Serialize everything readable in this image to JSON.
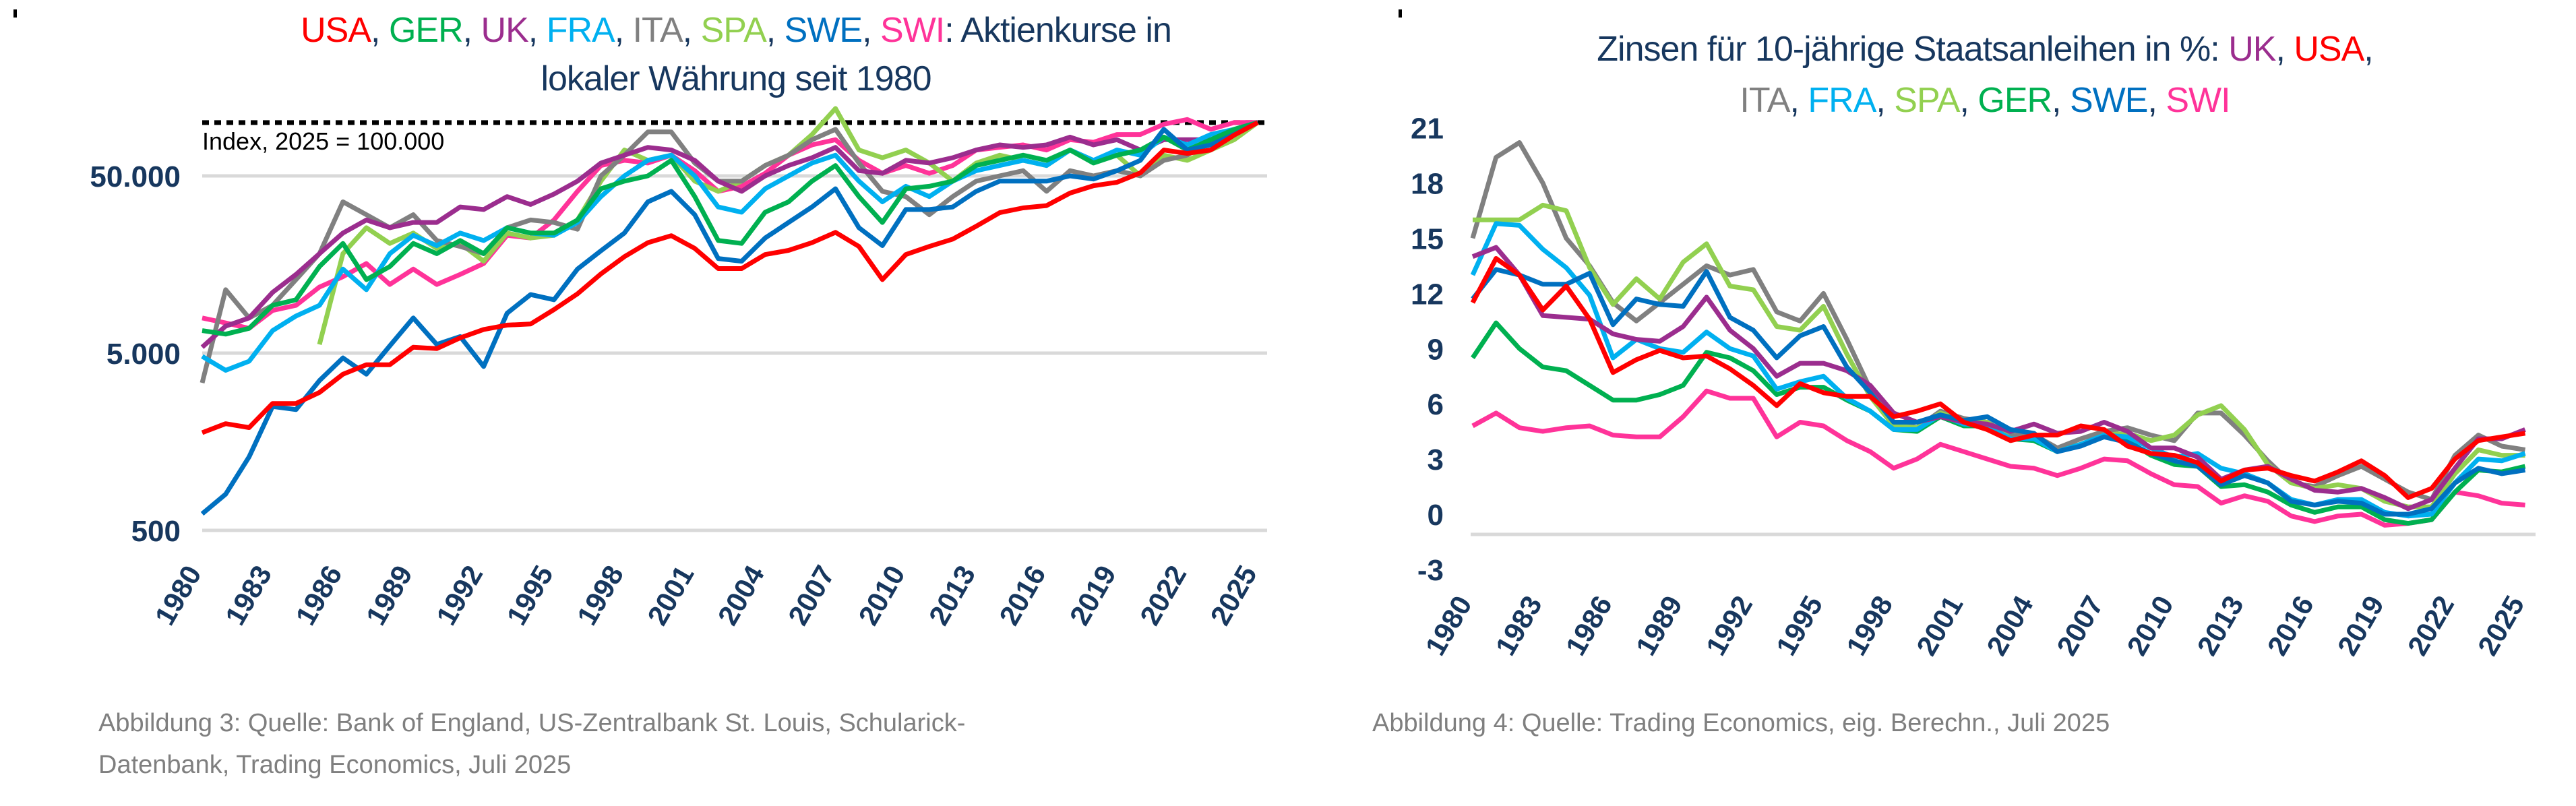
{
  "colors": {
    "USA": "#FF0000",
    "GER": "#00B050",
    "UK": "#9B2D8E",
    "FRA": "#00B0F0",
    "ITA": "#808080",
    "SPA": "#92D050",
    "SWE": "#0070C0",
    "SWI": "#FF3399",
    "title": "#17375E",
    "grid": "#D9D9D9"
  },
  "chart_data": [
    {
      "type": "line",
      "title_parts": [
        "USA",
        ", ",
        "GER",
        ", ",
        "UK",
        ", ",
        "FRA",
        ", ",
        "ITA",
        ", ",
        "SPA",
        ", ",
        "SWE",
        ", ",
        "SWI",
        ": Aktienkurse in"
      ],
      "title_line2": "lokaler Währung seit 1980",
      "annotation": "Index, 2025 = 100.000",
      "reference_line": 100000,
      "yscale": "log",
      "ylim": [
        500,
        100000
      ],
      "yticks": [
        50000,
        5000,
        500
      ],
      "ytick_labels": [
        "50.000",
        "5.000",
        "500"
      ],
      "xtick_labels": [
        "1980",
        "1983",
        "1986",
        "1989",
        "1992",
        "1995",
        "1998",
        "2001",
        "2004",
        "2007",
        "2010",
        "2013",
        "2016",
        "2019",
        "2022",
        "2025"
      ],
      "x_start": 1980,
      "series": [
        {
          "name": "SWI",
          "values": [
            7900,
            7400,
            6900,
            8700,
            9300,
            11800,
            13500,
            16000,
            12200,
            14900,
            12200,
            13900,
            16000,
            23100,
            22300,
            28200,
            40900,
            57200,
            61200,
            59100,
            65400,
            53500,
            40900,
            43700,
            51700,
            65400,
            74800,
            80000,
            61200,
            51700,
            57200,
            51700,
            57200,
            70000,
            72400,
            74800,
            70000,
            80000,
            77400,
            85600,
            85600,
            97900,
            104000,
            91600,
            100000,
            100000
          ]
        },
        {
          "name": "SPA",
          "values": [
            null,
            null,
            null,
            null,
            null,
            5600,
            18200,
            25500,
            20800,
            23800,
            19500,
            20800,
            16500,
            23800,
            22300,
            23100,
            28200,
            46700,
            70000,
            61200,
            65400,
            46700,
            40900,
            46700,
            57200,
            65400,
            85600,
            120000,
            70000,
            63300,
            70000,
            59100,
            46700,
            59100,
            65400,
            61200,
            57200,
            70000,
            61200,
            65400,
            50000,
            65400,
            61200,
            70000,
            80000,
            100000
          ]
        },
        {
          "name": "ITA",
          "values": [
            3400,
            11400,
            7900,
            9300,
            13000,
            18200,
            35700,
            30200,
            25500,
            30200,
            21600,
            20000,
            18200,
            25500,
            28200,
            27300,
            25000,
            50000,
            65400,
            88500,
            88500,
            59100,
            46700,
            46700,
            57200,
            65400,
            80000,
            91600,
            59100,
            40900,
            38200,
            30200,
            38200,
            46700,
            50000,
            53500,
            40900,
            53500,
            50000,
            53500,
            50000,
            61200,
            65400,
            80000,
            85600,
            100000
          ]
        },
        {
          "name": "UK",
          "values": [
            5400,
            7100,
            7900,
            11000,
            13900,
            18200,
            23800,
            28200,
            25500,
            27300,
            27300,
            33400,
            32300,
            38200,
            34500,
            39500,
            46700,
            59100,
            65400,
            72400,
            70000,
            61200,
            46700,
            40900,
            50000,
            57200,
            63300,
            72400,
            53500,
            51700,
            61200,
            59100,
            63300,
            70000,
            74800,
            72400,
            74800,
            82800,
            74800,
            80000,
            70000,
            80000,
            80000,
            80000,
            88500,
            100000
          ]
        },
        {
          "name": "FRA",
          "values": [
            4800,
            4000,
            4500,
            6700,
            8100,
            9300,
            14900,
            11400,
            18200,
            23100,
            20200,
            23800,
            21600,
            25500,
            23800,
            23100,
            27300,
            38200,
            50000,
            61200,
            65400,
            50000,
            33400,
            31200,
            42300,
            50000,
            59100,
            65400,
            46700,
            35700,
            43700,
            38200,
            46700,
            53500,
            57200,
            61200,
            57200,
            70000,
            61200,
            70000,
            65400,
            82800,
            74800,
            85600,
            91600,
            100000
          ]
        },
        {
          "name": "GER",
          "values": [
            6700,
            6400,
            6900,
            9300,
            10000,
            15400,
            20800,
            13000,
            15400,
            20800,
            18200,
            21600,
            18200,
            25500,
            23800,
            23800,
            28200,
            42300,
            46700,
            50000,
            61200,
            38200,
            21600,
            20800,
            31200,
            35700,
            46700,
            57200,
            38200,
            27300,
            42300,
            43700,
            46700,
            57200,
            61200,
            65400,
            61200,
            70000,
            59100,
            65400,
            70000,
            82800,
            70000,
            80000,
            91600,
            100000
          ]
        },
        {
          "name": "SWE",
          "values": [
            620,
            800,
            1300,
            2500,
            2400,
            3500,
            4700,
            3800,
            5500,
            7900,
            5600,
            6200,
            4200,
            8400,
            10700,
            10000,
            14900,
            18900,
            23800,
            35700,
            40900,
            30200,
            17100,
            16500,
            22300,
            27300,
            33400,
            42300,
            25500,
            20200,
            32300,
            32300,
            33400,
            40900,
            46700,
            46700,
            46700,
            50000,
            48000,
            53500,
            61200,
            91600,
            70000,
            74800,
            85600,
            100000
          ]
        },
        {
          "name": "USA",
          "values": [
            1780,
            2000,
            1900,
            2600,
            2600,
            3000,
            3800,
            4300,
            4300,
            5400,
            5300,
            6100,
            6800,
            7200,
            7300,
            8800,
            10800,
            14000,
            17500,
            21000,
            23000,
            19500,
            15000,
            15000,
            18000,
            19000,
            21000,
            24000,
            20000,
            13000,
            18000,
            20000,
            22000,
            26000,
            31000,
            33000,
            34000,
            40000,
            44000,
            46000,
            52000,
            70000,
            67000,
            70000,
            85000,
            100000
          ]
        }
      ]
    },
    {
      "type": "line",
      "title_parts": [
        "Zinsen für 10-jährige Staatsanleihen in %: ",
        "UK",
        ", ",
        "USA",
        ","
      ],
      "title_line2_parts": [
        "ITA",
        ", ",
        "FRA",
        ", ",
        "SPA",
        ", ",
        "GER",
        ", ",
        "SWE",
        ", ",
        "SWI"
      ],
      "ylim": [
        -3,
        21
      ],
      "yticks": [
        21,
        18,
        15,
        12,
        9,
        6,
        3,
        0,
        -3
      ],
      "ytick_labels": [
        "21",
        "18",
        "15",
        "12",
        "9",
        "6",
        "3",
        "0",
        "-3"
      ],
      "xtick_labels": [
        "1980",
        "1983",
        "1986",
        "1989",
        "1992",
        "1995",
        "1998",
        "2001",
        "2004",
        "2007",
        "2010",
        "2013",
        "2016",
        "2019",
        "2022",
        "2025"
      ],
      "x_start": 1980,
      "series": [
        {
          "name": "SWI",
          "values": [
            4.8,
            5.5,
            4.7,
            4.5,
            4.7,
            4.8,
            4.3,
            4.2,
            4.2,
            5.3,
            6.7,
            6.3,
            6.3,
            4.2,
            5.0,
            4.8,
            4.0,
            3.4,
            2.5,
            3.0,
            3.8,
            3.4,
            3.0,
            2.6,
            2.5,
            2.1,
            2.5,
            3.0,
            2.9,
            2.2,
            1.6,
            1.5,
            0.6,
            1.0,
            0.7,
            -0.1,
            -0.4,
            -0.1,
            0.0,
            -0.6,
            -0.5,
            -0.3,
            1.2,
            1.0,
            0.6,
            0.5
          ]
        },
        {
          "name": "ITA",
          "values": [
            15,
            19.4,
            20.2,
            18,
            15,
            13.5,
            11.5,
            10.5,
            11.5,
            12.5,
            13.5,
            13,
            13.3,
            11,
            10.5,
            12,
            9.5,
            6.8,
            5,
            4.7,
            5.6,
            5.2,
            5.0,
            4.3,
            4.3,
            3.6,
            4.1,
            4.5,
            4.7,
            4.3,
            4.0,
            5.5,
            5.5,
            4.3,
            2.9,
            1.7,
            1.5,
            2.1,
            2.6,
            1.9,
            1.2,
            0.8,
            3.2,
            4.3,
            3.7,
            3.5
          ]
        },
        {
          "name": "SPA",
          "values": [
            16,
            16,
            16,
            16.8,
            16.5,
            13.4,
            11.4,
            12.8,
            11.7,
            13.7,
            14.7,
            12.4,
            12.2,
            10.2,
            10.0,
            11.3,
            8.7,
            6.4,
            4.8,
            4.7,
            5.5,
            5.1,
            5.0,
            4.1,
            4.1,
            3.4,
            3.8,
            4.3,
            4.4,
            4.0,
            4.3,
            5.4,
            5.9,
            4.6,
            2.7,
            1.7,
            1.4,
            1.6,
            1.4,
            0.7,
            0.4,
            0.4,
            2.2,
            3.5,
            3.2,
            3.2
          ]
        },
        {
          "name": "GER",
          "values": [
            8.5,
            10.4,
            9.0,
            8.0,
            7.8,
            7.0,
            6.2,
            6.2,
            6.5,
            7.0,
            8.8,
            8.5,
            7.8,
            6.5,
            6.9,
            6.9,
            6.2,
            5.6,
            4.6,
            4.5,
            5.3,
            4.8,
            4.8,
            4.1,
            4.0,
            3.4,
            3.8,
            4.2,
            4.0,
            3.2,
            2.7,
            2.6,
            1.5,
            1.6,
            1.2,
            0.5,
            0.1,
            0.4,
            0.4,
            -0.3,
            -0.5,
            -0.3,
            1.2,
            2.4,
            2.3,
            2.6
          ]
        },
        {
          "name": "FRA",
          "values": [
            13,
            15.8,
            15.7,
            14.4,
            13.4,
            11.9,
            8.5,
            9.5,
            9.0,
            8.8,
            9.9,
            9.0,
            8.6,
            6.8,
            7.2,
            7.5,
            6.3,
            5.6,
            4.6,
            4.6,
            5.4,
            4.9,
            4.8,
            4.1,
            4.1,
            3.4,
            3.8,
            4.3,
            4.2,
            3.6,
            3.1,
            3.3,
            2.5,
            2.2,
            1.7,
            0.8,
            0.5,
            0.8,
            0.8,
            0.1,
            -0.1,
            0.0,
            1.7,
            3.0,
            2.9,
            3.3
          ]
        },
        {
          "name": "UK",
          "values": [
            14,
            14.5,
            13,
            10.8,
            10.7,
            10.6,
            9.8,
            9.5,
            9.4,
            10.2,
            11.8,
            10.0,
            9.0,
            7.5,
            8.2,
            8.2,
            7.8,
            7.0,
            5.5,
            5.0,
            5.3,
            5.0,
            4.9,
            4.5,
            4.9,
            4.4,
            4.5,
            5.0,
            4.5,
            3.6,
            3.6,
            3.1,
            1.9,
            2.4,
            2.6,
            1.9,
            1.3,
            1.2,
            1.4,
            0.9,
            0.3,
            0.8,
            2.5,
            4.1,
            4.1,
            4.6
          ]
        },
        {
          "name": "SWE",
          "values": [
            11.7,
            13.3,
            13.0,
            12.5,
            12.5,
            13.1,
            10.3,
            11.7,
            11.4,
            11.3,
            13.2,
            10.7,
            10.0,
            8.5,
            9.7,
            10.2,
            8.0,
            6.6,
            5.0,
            5.0,
            5.4,
            5.1,
            5.3,
            4.6,
            4.4,
            3.4,
            3.7,
            4.2,
            3.9,
            3.3,
            2.9,
            2.6,
            1.6,
            2.1,
            1.7,
            0.7,
            0.5,
            0.7,
            0.6,
            0.0,
            0.0,
            0.3,
            1.7,
            2.5,
            2.2,
            2.4
          ]
        },
        {
          "name": "USA",
          "values": [
            11.5,
            13.9,
            13.0,
            11.1,
            12.4,
            10.6,
            7.7,
            8.4,
            8.9,
            8.5,
            8.6,
            7.9,
            7.0,
            5.9,
            7.1,
            6.6,
            6.4,
            6.4,
            5.3,
            5.6,
            6.0,
            5.0,
            4.6,
            4.0,
            4.3,
            4.3,
            4.8,
            4.6,
            3.7,
            3.3,
            3.2,
            2.8,
            1.8,
            2.4,
            2.5,
            2.1,
            1.8,
            2.3,
            2.9,
            2.1,
            0.9,
            1.4,
            3.0,
            4.0,
            4.2,
            4.4
          ]
        }
      ]
    }
  ],
  "captions": {
    "left_line1": "Abbildung 3: Quelle: Bank of England, US-Zentralbank St. Louis, Schularick-",
    "left_line2": "Datenbank, Trading Economics, Juli 2025",
    "right": "Abbildung 4: Quelle: Trading Economics, eig. Berechn., Juli 2025"
  }
}
